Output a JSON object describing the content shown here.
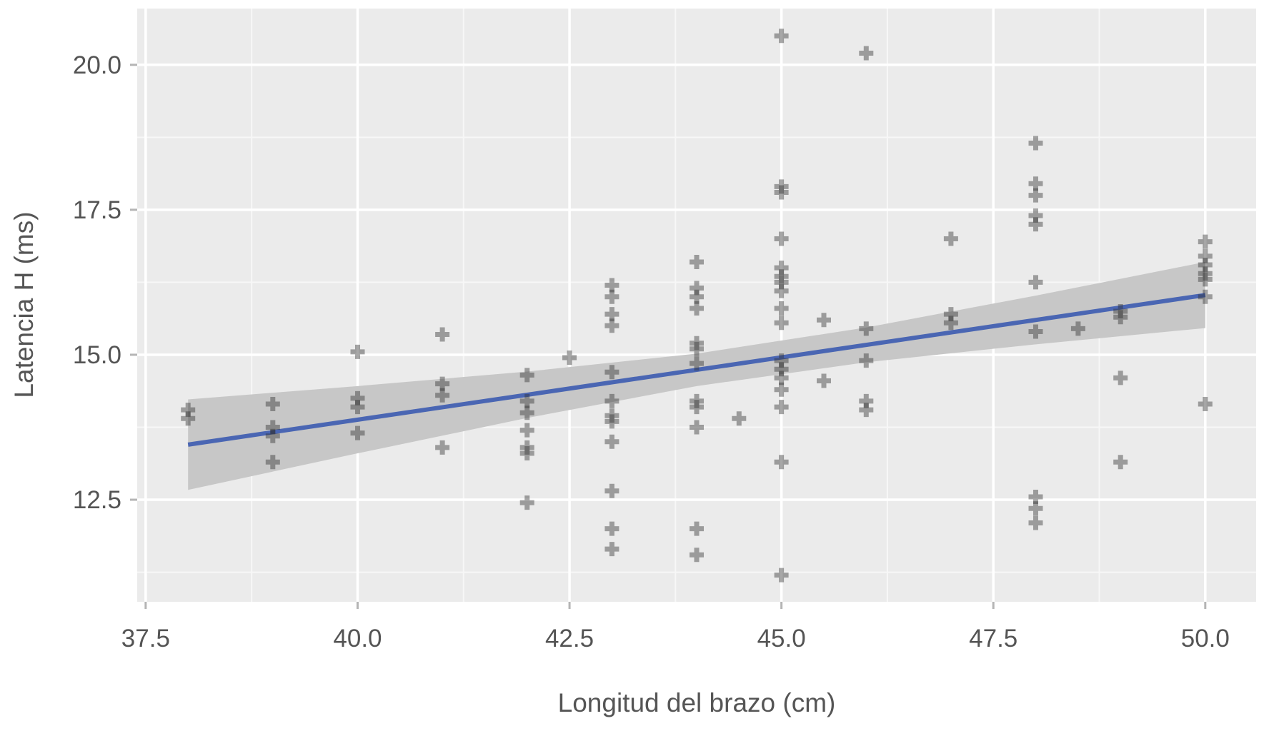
{
  "labels": {
    "x_axis": "Longitud del brazo (cm)",
    "y_axis": "Latencia H (ms)"
  },
  "chart_data": {
    "type": "scatter",
    "title": "",
    "xlabel": "Longitud del brazo (cm)",
    "ylabel": "Latencia H (ms)",
    "xlim": [
      37.4,
      50.6
    ],
    "ylim": [
      10.74,
      20.97
    ],
    "x_ticks": [
      37.5,
      40.0,
      42.5,
      45.0,
      47.5,
      50.0
    ],
    "y_ticks": [
      12.5,
      15.0,
      17.5,
      20.0
    ],
    "x_minor_ticks": [
      38.75,
      41.25,
      43.75,
      46.25,
      48.75
    ],
    "y_minor_ticks": [
      11.25,
      13.75,
      16.25,
      18.75
    ],
    "grid": true,
    "legend": "none",
    "marker": "plus",
    "points": [
      [
        38,
        14.05
      ],
      [
        38,
        13.9
      ],
      [
        39,
        14.15
      ],
      [
        39,
        13.75
      ],
      [
        39,
        13.6
      ],
      [
        39,
        13.15
      ],
      [
        40,
        15.05
      ],
      [
        40,
        14.25
      ],
      [
        40,
        14.1
      ],
      [
        40,
        13.65
      ],
      [
        41,
        15.35
      ],
      [
        41,
        14.5
      ],
      [
        41,
        14.3
      ],
      [
        41,
        13.4
      ],
      [
        42,
        14.65
      ],
      [
        42,
        14.2
      ],
      [
        42,
        14.0
      ],
      [
        42,
        13.7
      ],
      [
        42,
        13.4
      ],
      [
        42,
        13.3
      ],
      [
        42,
        12.45
      ],
      [
        42.5,
        14.95
      ],
      [
        43,
        16.2
      ],
      [
        43,
        16.0
      ],
      [
        43,
        15.7
      ],
      [
        43,
        15.5
      ],
      [
        43,
        14.7
      ],
      [
        43,
        14.2
      ],
      [
        43,
        13.95
      ],
      [
        43,
        13.85
      ],
      [
        43,
        13.5
      ],
      [
        43,
        12.65
      ],
      [
        43,
        12.0
      ],
      [
        43,
        11.65
      ],
      [
        44,
        16.6
      ],
      [
        44,
        16.15
      ],
      [
        44,
        16.0
      ],
      [
        44,
        15.8
      ],
      [
        44,
        15.2
      ],
      [
        44,
        15.1
      ],
      [
        44,
        14.85
      ],
      [
        44,
        14.2
      ],
      [
        44,
        14.1
      ],
      [
        44,
        13.75
      ],
      [
        44,
        12.0
      ],
      [
        44,
        11.55
      ],
      [
        44.5,
        13.9
      ],
      [
        45,
        20.5
      ],
      [
        45,
        17.9
      ],
      [
        45,
        17.8
      ],
      [
        45,
        17.0
      ],
      [
        45,
        16.5
      ],
      [
        45,
        16.35
      ],
      [
        45,
        16.25
      ],
      [
        45,
        16.1
      ],
      [
        45,
        15.8
      ],
      [
        45,
        15.55
      ],
      [
        45,
        14.9
      ],
      [
        45,
        14.75
      ],
      [
        45,
        14.6
      ],
      [
        45,
        14.4
      ],
      [
        45,
        14.1
      ],
      [
        45,
        13.15
      ],
      [
        45,
        11.2
      ],
      [
        45.5,
        15.6
      ],
      [
        45.5,
        14.55
      ],
      [
        46,
        20.2
      ],
      [
        46,
        15.45
      ],
      [
        46,
        14.9
      ],
      [
        46,
        14.2
      ],
      [
        46,
        14.05
      ],
      [
        47,
        17.0
      ],
      [
        47,
        15.7
      ],
      [
        47,
        15.55
      ],
      [
        48,
        18.65
      ],
      [
        48,
        17.95
      ],
      [
        48,
        17.75
      ],
      [
        48,
        17.4
      ],
      [
        48,
        17.25
      ],
      [
        48,
        16.25
      ],
      [
        48,
        15.4
      ],
      [
        48,
        12.55
      ],
      [
        48,
        12.35
      ],
      [
        48,
        12.1
      ],
      [
        48.5,
        15.45
      ],
      [
        49,
        15.75
      ],
      [
        49,
        15.65
      ],
      [
        49,
        14.6
      ],
      [
        49,
        13.15
      ],
      [
        50,
        16.95
      ],
      [
        50,
        16.7
      ],
      [
        50,
        16.55
      ],
      [
        50,
        16.4
      ],
      [
        50,
        16.3
      ],
      [
        50,
        16.0
      ],
      [
        50,
        14.15
      ]
    ],
    "smooth_line": {
      "x": [
        38,
        50
      ],
      "y": [
        13.45,
        16.03
      ]
    },
    "ci_band": {
      "x": [
        38,
        40,
        42,
        44,
        46,
        48,
        50
      ],
      "upper": [
        14.23,
        14.46,
        14.71,
        15.02,
        15.47,
        16.02,
        16.6
      ],
      "lower": [
        12.67,
        13.3,
        13.91,
        14.46,
        14.87,
        15.18,
        15.46
      ]
    },
    "colors": {
      "panel_bg": "#ebebeb",
      "grid_major": "#ffffff",
      "grid_minor": "#f7f7f7",
      "point": "#2e2e2e",
      "smooth_line": "#4a66b3",
      "ci_band": "#c7c7c7",
      "text": "#555555",
      "tick_mark": "#b5b5b5"
    }
  }
}
